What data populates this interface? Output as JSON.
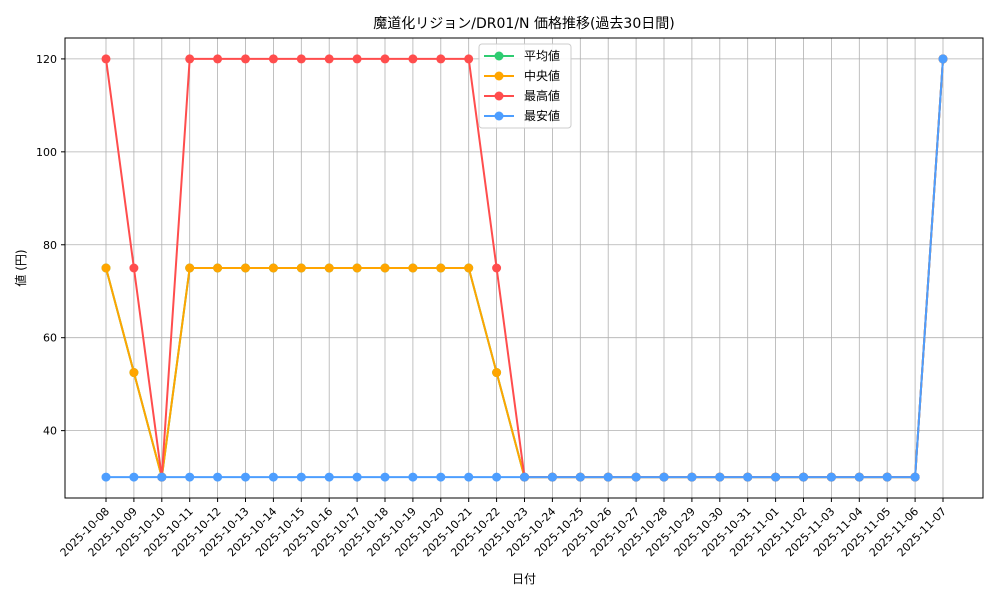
{
  "chart_data": {
    "type": "line",
    "title": "魔道化リジョン/DR01/N 価格推移(過去30日間)",
    "xlabel": "日付",
    "ylabel": "値 (円)",
    "ylim": [
      25.5,
      124.5
    ],
    "yticks": [
      40,
      60,
      80,
      100,
      120
    ],
    "grid": true,
    "legend_position": "top-center",
    "x": [
      "2025-10-08",
      "2025-10-09",
      "2025-10-10",
      "2025-10-11",
      "2025-10-12",
      "2025-10-13",
      "2025-10-14",
      "2025-10-15",
      "2025-10-16",
      "2025-10-17",
      "2025-10-18",
      "2025-10-19",
      "2025-10-20",
      "2025-10-21",
      "2025-10-22",
      "2025-10-23",
      "2025-10-24",
      "2025-10-25",
      "2025-10-26",
      "2025-10-27",
      "2025-10-28",
      "2025-10-29",
      "2025-10-30",
      "2025-10-31",
      "2025-11-01",
      "2025-11-02",
      "2025-11-03",
      "2025-11-04",
      "2025-11-05",
      "2025-11-06",
      "2025-11-07"
    ],
    "series": [
      {
        "name": "平均値",
        "color": "#2ecc71",
        "values": [
          75,
          52.5,
          30,
          75,
          75,
          75,
          75,
          75,
          75,
          75,
          75,
          75,
          75,
          75,
          52.5,
          30,
          30,
          30,
          30,
          30,
          30,
          30,
          30,
          30,
          30,
          30,
          30,
          30,
          30,
          30,
          120
        ]
      },
      {
        "name": "中央値",
        "color": "#ffa500",
        "values": [
          75,
          52.5,
          30,
          75,
          75,
          75,
          75,
          75,
          75,
          75,
          75,
          75,
          75,
          75,
          52.5,
          30,
          30,
          30,
          30,
          30,
          30,
          30,
          30,
          30,
          30,
          30,
          30,
          30,
          30,
          30,
          120
        ]
      },
      {
        "name": "最高値",
        "color": "#ff4d4d",
        "values": [
          120,
          75,
          30,
          120,
          120,
          120,
          120,
          120,
          120,
          120,
          120,
          120,
          120,
          120,
          75,
          30,
          30,
          30,
          30,
          30,
          30,
          30,
          30,
          30,
          30,
          30,
          30,
          30,
          30,
          30,
          120
        ]
      },
      {
        "name": "最安値",
        "color": "#4d9eff",
        "values": [
          30,
          30,
          30,
          30,
          30,
          30,
          30,
          30,
          30,
          30,
          30,
          30,
          30,
          30,
          30,
          30,
          30,
          30,
          30,
          30,
          30,
          30,
          30,
          30,
          30,
          30,
          30,
          30,
          30,
          30,
          120
        ]
      }
    ]
  }
}
